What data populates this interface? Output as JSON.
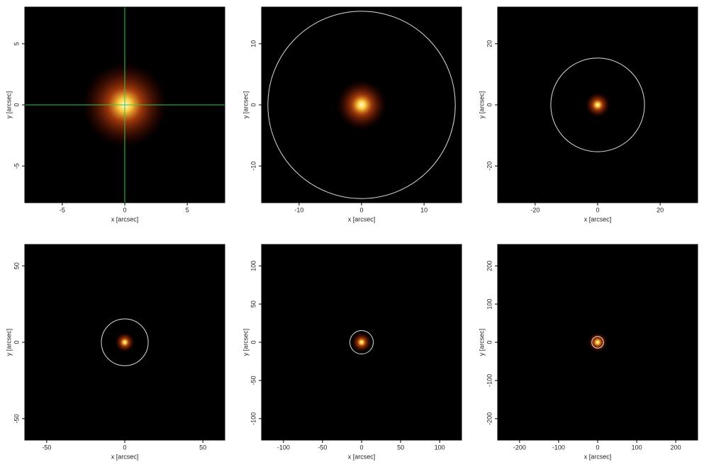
{
  "chart_data": [
    {
      "type": "image",
      "xlabel": "x [arcsec]",
      "ylabel": "y [arcsec]",
      "xlim": [
        -8,
        8
      ],
      "ylim": [
        -8,
        8
      ],
      "xticks": [
        -5,
        0,
        5
      ],
      "yticks": [
        -5,
        0,
        5
      ],
      "crosshair": [
        0,
        0
      ],
      "crosshair_color": "#2ecc40"
    },
    {
      "type": "image",
      "xlabel": "x [arcsec]",
      "ylabel": "y [arcsec]",
      "xlim": [
        -16,
        16
      ],
      "ylim": [
        -16,
        16
      ],
      "xticks": [
        -10,
        0,
        10
      ],
      "yticks": [
        -10,
        0,
        10
      ],
      "circle_radius": 15
    },
    {
      "type": "image",
      "xlabel": "x [arcsec]",
      "ylabel": "y [arcsec]",
      "xlim": [
        -32,
        32
      ],
      "ylim": [
        -32,
        32
      ],
      "xticks": [
        -20,
        0,
        20
      ],
      "yticks": [
        -20,
        0,
        20
      ],
      "circle_radius": 15
    },
    {
      "type": "image",
      "xlabel": "x [arcsec]",
      "ylabel": "y [arcsec]",
      "xlim": [
        -64,
        64
      ],
      "ylim": [
        -64,
        64
      ],
      "xticks": [
        -50,
        0,
        50
      ],
      "yticks": [
        -50,
        0,
        50
      ],
      "circle_radius": 15
    },
    {
      "type": "image",
      "xlabel": "x [arcsec]",
      "ylabel": "y [arcsec]",
      "xlim": [
        -128,
        128
      ],
      "ylim": [
        -128,
        128
      ],
      "xticks": [
        -100,
        -50,
        0,
        50,
        100
      ],
      "yticks": [
        -100,
        -50,
        0,
        50,
        100
      ],
      "circle_radius": 15
    },
    {
      "type": "image",
      "xlabel": "x [arcsec]",
      "ylabel": "y [arcsec]",
      "xlim": [
        -256,
        256
      ],
      "ylim": [
        -256,
        256
      ],
      "xticks": [
        -200,
        -100,
        0,
        100,
        200
      ],
      "yticks": [
        -200,
        -100,
        0,
        100,
        200
      ],
      "circle_radius": 15
    }
  ]
}
